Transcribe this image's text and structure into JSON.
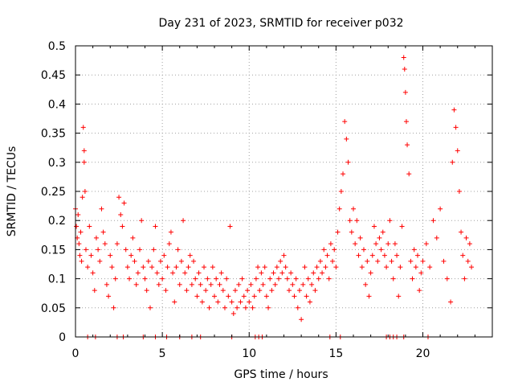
{
  "chart_data": {
    "type": "scatter",
    "title": "Day 231 of 2023, SRMTID for receiver p032",
    "xlabel": "GPS time / hours",
    "ylabel": "SRMTID / TECUs",
    "xlim": [
      0,
      24
    ],
    "ylim": [
      0,
      0.5
    ],
    "grid": true,
    "marker": "+",
    "marker_color": "#ff0000",
    "x_ticks": [
      0,
      5,
      10,
      15,
      20
    ],
    "x_tick_labels": [
      "0",
      "5",
      "10",
      "15",
      "20"
    ],
    "y_ticks": [
      0,
      0.05,
      0.1,
      0.15,
      0.2,
      0.25,
      0.3,
      0.35,
      0.4,
      0.45,
      0.5
    ],
    "y_tick_labels": [
      "0",
      "0.05",
      "0.1",
      "0.15",
      "0.2",
      "0.25",
      "0.3",
      "0.35",
      "0.4",
      "0.45",
      "0.5"
    ],
    "series": [
      {
        "name": "SRMTID",
        "points": [
          [
            0.0,
            0.22
          ],
          [
            0.05,
            0.19
          ],
          [
            0.1,
            0.17
          ],
          [
            0.15,
            0.21
          ],
          [
            0.2,
            0.16
          ],
          [
            0.25,
            0.14
          ],
          [
            0.3,
            0.18
          ],
          [
            0.35,
            0.13
          ],
          [
            0.4,
            0.24
          ],
          [
            0.45,
            0.36
          ],
          [
            0.5,
            0.32
          ],
          [
            0.5,
            0.3
          ],
          [
            0.55,
            0.25
          ],
          [
            0.6,
            0.15
          ],
          [
            0.7,
            0.12
          ],
          [
            0.8,
            0.19
          ],
          [
            0.9,
            0.14
          ],
          [
            1.0,
            0.11
          ],
          [
            1.1,
            0.08
          ],
          [
            1.2,
            0.17
          ],
          [
            1.3,
            0.15
          ],
          [
            1.4,
            0.13
          ],
          [
            1.5,
            0.22
          ],
          [
            1.6,
            0.18
          ],
          [
            1.7,
            0.16
          ],
          [
            1.8,
            0.09
          ],
          [
            1.9,
            0.07
          ],
          [
            2.0,
            0.14
          ],
          [
            2.1,
            0.12
          ],
          [
            2.2,
            0.05
          ],
          [
            2.3,
            0.1
          ],
          [
            2.4,
            0.16
          ],
          [
            2.5,
            0.24
          ],
          [
            2.6,
            0.21
          ],
          [
            2.7,
            0.19
          ],
          [
            2.8,
            0.23
          ],
          [
            2.9,
            0.15
          ],
          [
            3.0,
            0.12
          ],
          [
            3.1,
            0.1
          ],
          [
            3.2,
            0.14
          ],
          [
            3.3,
            0.17
          ],
          [
            3.4,
            0.13
          ],
          [
            3.5,
            0.09
          ],
          [
            3.6,
            0.11
          ],
          [
            3.7,
            0.15
          ],
          [
            3.8,
            0.2
          ],
          [
            3.9,
            0.12
          ],
          [
            4.0,
            0.1
          ],
          [
            4.1,
            0.08
          ],
          [
            4.2,
            0.13
          ],
          [
            4.3,
            0.05
          ],
          [
            4.4,
            0.12
          ],
          [
            4.5,
            0.15
          ],
          [
            4.6,
            0.19
          ],
          [
            4.7,
            0.11
          ],
          [
            4.8,
            0.09
          ],
          [
            4.9,
            0.13
          ],
          [
            5.0,
            0.1
          ],
          [
            5.1,
            0.14
          ],
          [
            5.2,
            0.08
          ],
          [
            5.3,
            0.12
          ],
          [
            5.4,
            0.16
          ],
          [
            5.5,
            0.18
          ],
          [
            5.6,
            0.11
          ],
          [
            5.7,
            0.06
          ],
          [
            5.8,
            0.12
          ],
          [
            5.9,
            0.15
          ],
          [
            6.0,
            0.09
          ],
          [
            6.1,
            0.13
          ],
          [
            6.2,
            0.2
          ],
          [
            6.3,
            0.11
          ],
          [
            6.4,
            0.08
          ],
          [
            6.5,
            0.12
          ],
          [
            6.6,
            0.14
          ],
          [
            6.7,
            0.09
          ],
          [
            6.8,
            0.13
          ],
          [
            6.9,
            0.1
          ],
          [
            7.0,
            0.07
          ],
          [
            7.1,
            0.11
          ],
          [
            7.2,
            0.09
          ],
          [
            7.3,
            0.06
          ],
          [
            7.4,
            0.12
          ],
          [
            7.5,
            0.08
          ],
          [
            7.6,
            0.1
          ],
          [
            7.7,
            0.05
          ],
          [
            7.8,
            0.09
          ],
          [
            7.9,
            0.12
          ],
          [
            8.0,
            0.07
          ],
          [
            8.1,
            0.1
          ],
          [
            8.2,
            0.06
          ],
          [
            8.3,
            0.09
          ],
          [
            8.4,
            0.11
          ],
          [
            8.5,
            0.08
          ],
          [
            8.6,
            0.05
          ],
          [
            8.7,
            0.1
          ],
          [
            8.8,
            0.07
          ],
          [
            8.9,
            0.19
          ],
          [
            9.0,
            0.06
          ],
          [
            9.1,
            0.04
          ],
          [
            9.2,
            0.08
          ],
          [
            9.3,
            0.05
          ],
          [
            9.4,
            0.09
          ],
          [
            9.5,
            0.06
          ],
          [
            9.6,
            0.1
          ],
          [
            9.7,
            0.07
          ],
          [
            9.8,
            0.05
          ],
          [
            9.9,
            0.08
          ],
          [
            10.0,
            0.06
          ],
          [
            10.1,
            0.09
          ],
          [
            10.2,
            0.05
          ],
          [
            10.3,
            0.07
          ],
          [
            10.4,
            0.1
          ],
          [
            10.5,
            0.12
          ],
          [
            10.6,
            0.08
          ],
          [
            10.7,
            0.11
          ],
          [
            10.8,
            0.09
          ],
          [
            10.9,
            0.12
          ],
          [
            11.0,
            0.07
          ],
          [
            11.1,
            0.05
          ],
          [
            11.2,
            0.1
          ],
          [
            11.3,
            0.08
          ],
          [
            11.4,
            0.11
          ],
          [
            11.5,
            0.09
          ],
          [
            11.6,
            0.12
          ],
          [
            11.7,
            0.1
          ],
          [
            11.8,
            0.13
          ],
          [
            11.9,
            0.11
          ],
          [
            12.0,
            0.14
          ],
          [
            12.1,
            0.12
          ],
          [
            12.2,
            0.1
          ],
          [
            12.3,
            0.08
          ],
          [
            12.4,
            0.11
          ],
          [
            12.5,
            0.09
          ],
          [
            12.6,
            0.07
          ],
          [
            12.7,
            0.1
          ],
          [
            12.8,
            0.05
          ],
          [
            12.9,
            0.08
          ],
          [
            13.0,
            0.03
          ],
          [
            13.1,
            0.09
          ],
          [
            13.2,
            0.12
          ],
          [
            13.3,
            0.07
          ],
          [
            13.4,
            0.1
          ],
          [
            13.5,
            0.06
          ],
          [
            13.6,
            0.09
          ],
          [
            13.7,
            0.11
          ],
          [
            13.8,
            0.08
          ],
          [
            13.9,
            0.12
          ],
          [
            14.0,
            0.1
          ],
          [
            14.1,
            0.13
          ],
          [
            14.2,
            0.11
          ],
          [
            14.3,
            0.15
          ],
          [
            14.4,
            0.12
          ],
          [
            14.5,
            0.14
          ],
          [
            14.6,
            0.1
          ],
          [
            14.7,
            0.16
          ],
          [
            14.8,
            0.13
          ],
          [
            14.9,
            0.15
          ],
          [
            15.0,
            0.12
          ],
          [
            15.1,
            0.18
          ],
          [
            15.2,
            0.22
          ],
          [
            15.3,
            0.25
          ],
          [
            15.4,
            0.28
          ],
          [
            15.5,
            0.37
          ],
          [
            15.6,
            0.34
          ],
          [
            15.7,
            0.3
          ],
          [
            15.8,
            0.2
          ],
          [
            15.9,
            0.18
          ],
          [
            16.0,
            0.22
          ],
          [
            16.1,
            0.16
          ],
          [
            16.2,
            0.2
          ],
          [
            16.3,
            0.14
          ],
          [
            16.4,
            0.17
          ],
          [
            16.5,
            0.12
          ],
          [
            16.6,
            0.15
          ],
          [
            16.7,
            0.09
          ],
          [
            16.8,
            0.13
          ],
          [
            16.9,
            0.07
          ],
          [
            17.0,
            0.11
          ],
          [
            17.1,
            0.14
          ],
          [
            17.2,
            0.19
          ],
          [
            17.3,
            0.16
          ],
          [
            17.4,
            0.13
          ],
          [
            17.5,
            0.17
          ],
          [
            17.6,
            0.15
          ],
          [
            17.7,
            0.18
          ],
          [
            17.8,
            0.14
          ],
          [
            17.9,
            0.12
          ],
          [
            18.0,
            0.16
          ],
          [
            18.1,
            0.2
          ],
          [
            18.2,
            0.13
          ],
          [
            18.3,
            0.1
          ],
          [
            18.4,
            0.16
          ],
          [
            18.5,
            0.14
          ],
          [
            18.6,
            0.07
          ],
          [
            18.7,
            0.12
          ],
          [
            18.8,
            0.19
          ],
          [
            18.9,
            0.48
          ],
          [
            18.95,
            0.46
          ],
          [
            19.0,
            0.42
          ],
          [
            19.05,
            0.37
          ],
          [
            19.1,
            0.33
          ],
          [
            19.2,
            0.28
          ],
          [
            19.3,
            0.13
          ],
          [
            19.4,
            0.1
          ],
          [
            19.5,
            0.15
          ],
          [
            19.6,
            0.12
          ],
          [
            19.7,
            0.14
          ],
          [
            19.8,
            0.08
          ],
          [
            19.9,
            0.11
          ],
          [
            20.0,
            0.13
          ],
          [
            20.2,
            0.16
          ],
          [
            20.4,
            0.12
          ],
          [
            20.6,
            0.2
          ],
          [
            20.8,
            0.17
          ],
          [
            21.0,
            0.22
          ],
          [
            21.2,
            0.13
          ],
          [
            21.4,
            0.1
          ],
          [
            21.6,
            0.06
          ],
          [
            21.7,
            0.3
          ],
          [
            21.8,
            0.39
          ],
          [
            21.9,
            0.36
          ],
          [
            22.0,
            0.32
          ],
          [
            22.1,
            0.25
          ],
          [
            22.2,
            0.18
          ],
          [
            22.3,
            0.14
          ],
          [
            22.4,
            0.1
          ],
          [
            22.5,
            0.17
          ],
          [
            22.6,
            0.13
          ],
          [
            22.7,
            0.16
          ],
          [
            22.8,
            0.12
          ],
          [
            0.7,
            0.0
          ],
          [
            1.15,
            0.0
          ],
          [
            2.4,
            0.0
          ],
          [
            2.75,
            0.0
          ],
          [
            3.9,
            0.0
          ],
          [
            4.6,
            0.0
          ],
          [
            5.25,
            0.0
          ],
          [
            6.0,
            0.0
          ],
          [
            6.7,
            0.0
          ],
          [
            7.2,
            0.0
          ],
          [
            9.0,
            0.0
          ],
          [
            10.35,
            0.0
          ],
          [
            10.55,
            0.0
          ],
          [
            10.75,
            0.0
          ],
          [
            14.65,
            0.0
          ],
          [
            15.25,
            0.0
          ],
          [
            17.9,
            0.0
          ],
          [
            18.1,
            0.0
          ],
          [
            18.3,
            0.0
          ],
          [
            18.5,
            0.0
          ],
          [
            18.9,
            0.0
          ],
          [
            20.3,
            0.0
          ]
        ]
      }
    ]
  }
}
